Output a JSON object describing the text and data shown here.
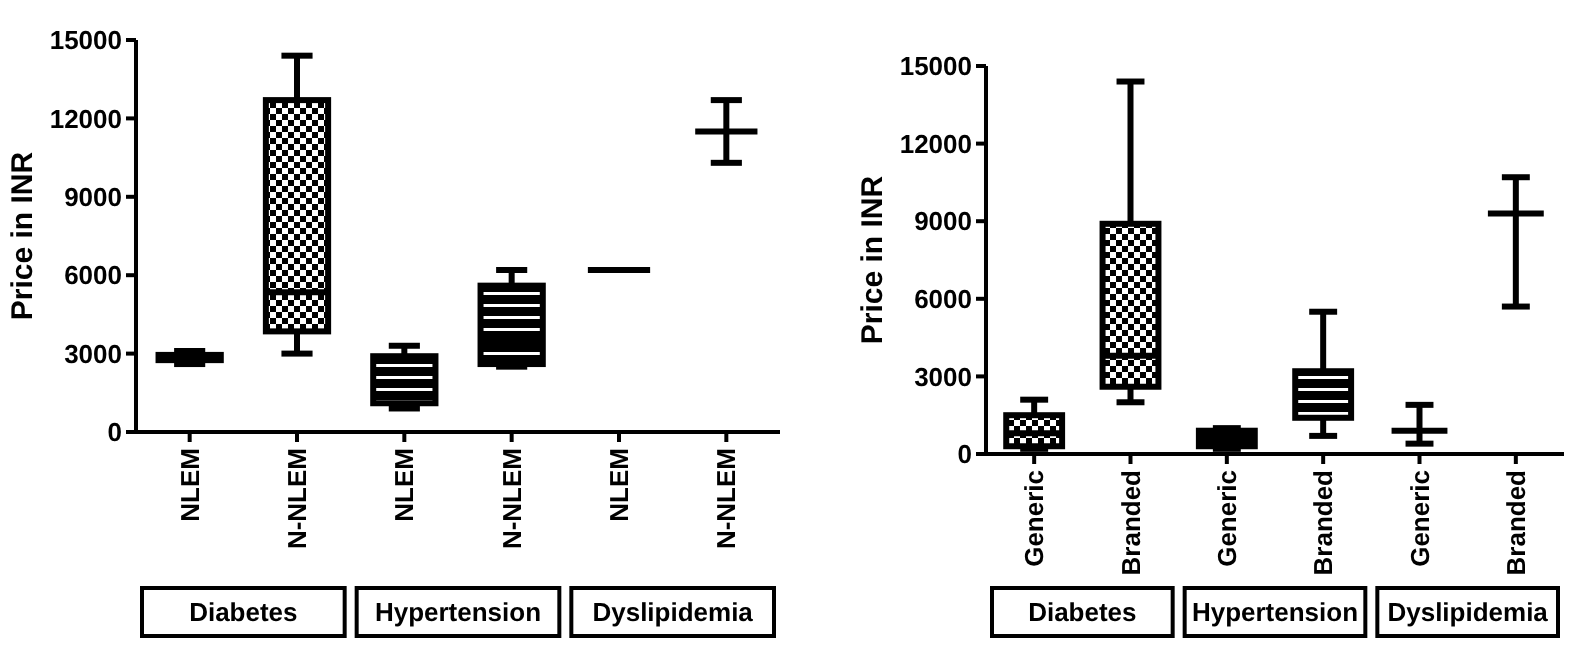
{
  "chart_data": [
    {
      "type": "box",
      "ylabel": "Price in INR",
      "categories": [
        "NLEM",
        "N-NLEM",
        "NLEM",
        "N-NLEM",
        "NLEM",
        "N-NLEM"
      ],
      "ylim": [
        0,
        15000
      ],
      "yticks": [
        0,
        3000,
        6000,
        9000,
        12000,
        15000
      ],
      "grid": false,
      "boxes": [
        {
          "low": 2600,
          "q1": 2750,
          "median": 2850,
          "q3": 2950,
          "high": 3100
        },
        {
          "low": 3000,
          "q1": 3850,
          "median": 5350,
          "q3": 12700,
          "high": 14400
        },
        {
          "low": 900,
          "q1": 1100,
          "median": 1900,
          "q3": 2900,
          "high": 3300
        },
        {
          "low": 2500,
          "q1": 2600,
          "median": 3500,
          "q3": 5600,
          "high": 6200
        },
        {
          "low": 6200,
          "q1": 6200,
          "median": 6200,
          "q3": 6200,
          "high": 6200
        },
        {
          "low": 10300,
          "q1": 11500,
          "median": 11500,
          "q3": 11500,
          "high": 12700
        }
      ],
      "annotations": [
        "Diabetes",
        "Hypertension",
        "Dyslipidemia"
      ]
    },
    {
      "type": "box",
      "ylabel": "Price in INR",
      "categories": [
        "Generic",
        "Branded",
        "Generic",
        "Branded",
        "Generic",
        "Branded"
      ],
      "ylim": [
        0,
        15000
      ],
      "yticks": [
        0,
        3000,
        6000,
        9000,
        12000,
        15000
      ],
      "grid": false,
      "boxes": [
        {
          "low": 200,
          "q1": 300,
          "median": 800,
          "q3": 1500,
          "high": 2100
        },
        {
          "low": 2000,
          "q1": 2600,
          "median": 3800,
          "q3": 8900,
          "high": 14400
        },
        {
          "low": 200,
          "q1": 300,
          "median": 600,
          "q3": 900,
          "high": 1000
        },
        {
          "low": 700,
          "q1": 1400,
          "median": 2200,
          "q3": 3200,
          "high": 5500
        },
        {
          "low": 400,
          "q1": 900,
          "median": 900,
          "q3": 900,
          "high": 1900
        },
        {
          "low": 5700,
          "q1": 9300,
          "median": 9300,
          "q3": 9300,
          "high": 10700
        }
      ],
      "annotations": [
        "Diabetes",
        "Hypertension",
        "Dyslipidemia"
      ]
    }
  ]
}
